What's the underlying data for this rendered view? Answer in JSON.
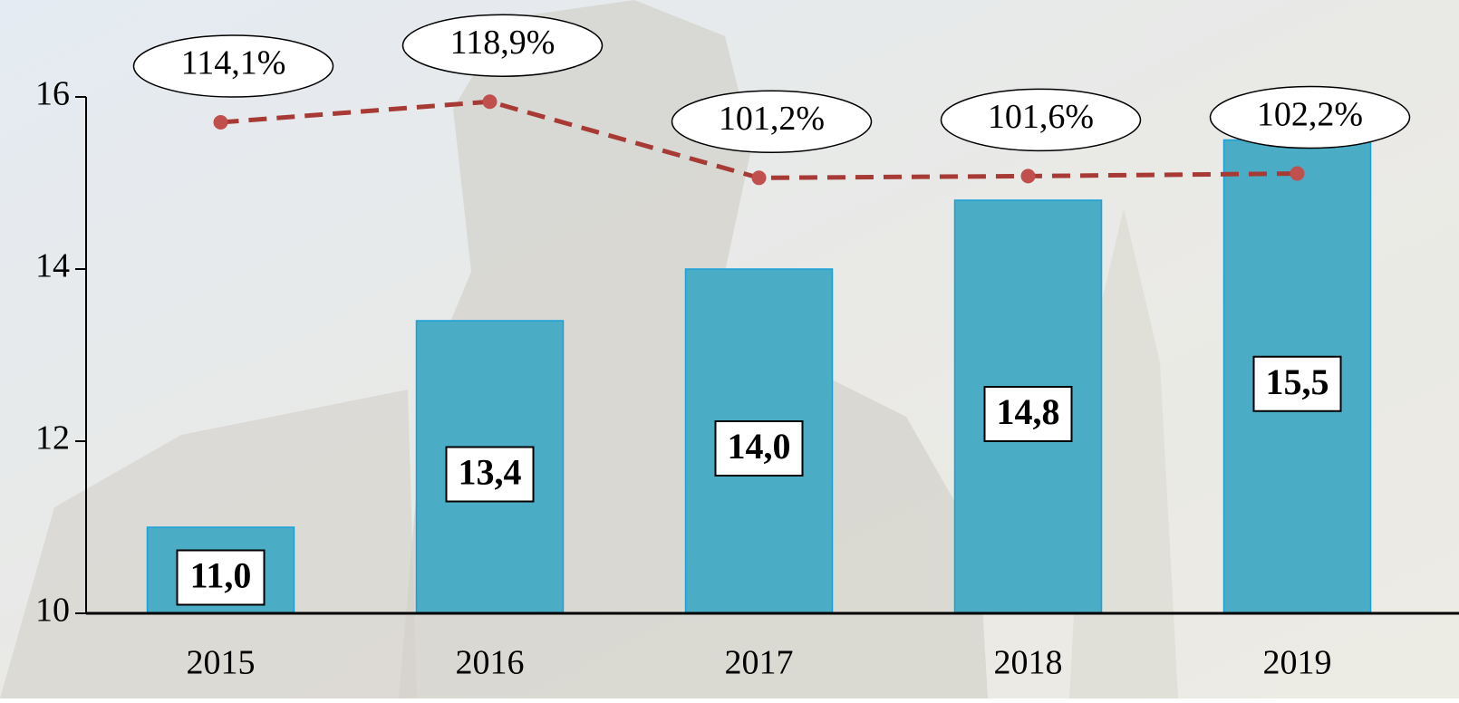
{
  "chart_data": {
    "type": "bar-line",
    "categories": [
      "2015",
      "2016",
      "2017",
      "2018",
      "2019"
    ],
    "series": [
      {
        "type": "bar",
        "color": "#4bacc6",
        "values": [
          11.0,
          13.4,
          14.0,
          14.8,
          15.5
        ],
        "value_labels": [
          "11,0",
          "13,4",
          "14,0",
          "14,8",
          "15,5"
        ]
      },
      {
        "type": "line",
        "axis": "y2",
        "color": "#a83a35",
        "values": [
          114.1,
          118.9,
          101.2,
          101.6,
          102.2
        ],
        "value_labels": [
          "114,1%",
          "118,9%",
          "101,2%",
          "101,6%",
          "102,2%"
        ]
      }
    ],
    "ylim": [
      10,
      16
    ],
    "yticks": [
      10,
      12,
      14,
      16
    ],
    "y2lim": [
      0,
      120
    ]
  }
}
